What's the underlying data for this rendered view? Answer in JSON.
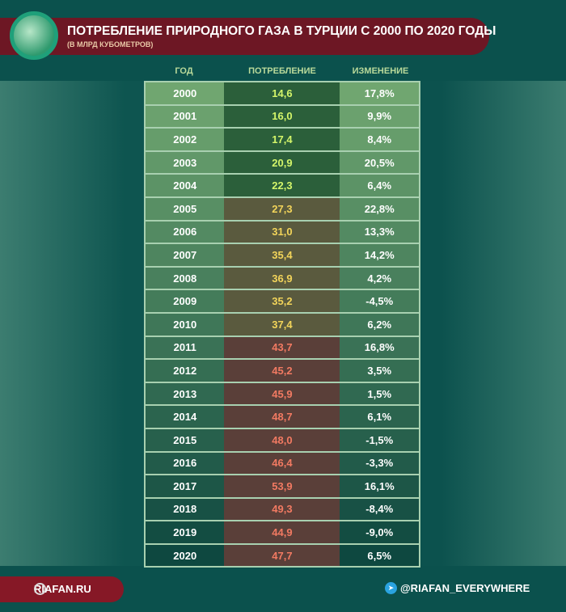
{
  "header": {
    "title": "ПОТРЕБЛЕНИЕ ПРИРОДНОГО ГАЗА В ТУРЦИИ С 2000 ПО 2020 ГОДЫ",
    "subtitle": "(В МЛРД КУБОМЕТРОВ)"
  },
  "footer": {
    "site": "RIAFAN.RU",
    "telegram": "@RIAFAN_EVERYWHERE"
  },
  "chart_data": {
    "type": "table",
    "title": "ПОТРЕБЛЕНИЕ ПРИРОДНОГО ГАЗА В ТУРЦИИ С 2000 ПО 2020 ГОДЫ",
    "columns": [
      "ГОД",
      "ПОТРЕБЛЕНИЕ",
      "ИЗМЕНЕНИЕ"
    ],
    "rows": [
      [
        "2000",
        "14,6",
        "17,8%"
      ],
      [
        "2001",
        "16,0",
        "9,9%"
      ],
      [
        "2002",
        "17,4",
        "8,4%"
      ],
      [
        "2003",
        "20,9",
        "20,5%"
      ],
      [
        "2004",
        "22,3",
        "6,4%"
      ],
      [
        "2005",
        "27,3",
        "22,8%"
      ],
      [
        "2006",
        "31,0",
        "13,3%"
      ],
      [
        "2007",
        "35,4",
        "14,2%"
      ],
      [
        "2008",
        "36,9",
        "4,2%"
      ],
      [
        "2009",
        "35,2",
        "-4,5%"
      ],
      [
        "2010",
        "37,4",
        "6,2%"
      ],
      [
        "2011",
        "43,7",
        "16,8%"
      ],
      [
        "2012",
        "45,2",
        "3,5%"
      ],
      [
        "2013",
        "45,9",
        "1,5%"
      ],
      [
        "2014",
        "48,7",
        "6,1%"
      ],
      [
        "2015",
        "48,0",
        "-1,5%"
      ],
      [
        "2016",
        "46,4",
        "-3,3%"
      ],
      [
        "2017",
        "53,9",
        "16,1%"
      ],
      [
        "2018",
        "49,3",
        "-8,4%"
      ],
      [
        "2019",
        "44,9",
        "-9,0%"
      ],
      [
        "2020",
        "47,7",
        "6,5%"
      ]
    ],
    "colors": {
      "low": "#d4f56a",
      "mid": "#f2d45a",
      "high": "#f27a62"
    }
  }
}
